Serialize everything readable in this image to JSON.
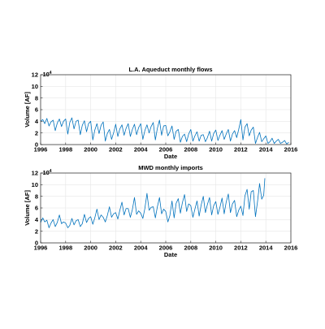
{
  "chart_data": [
    {
      "type": "line",
      "title": "L.A. Aqueduct monthly flows",
      "xlabel": "Date",
      "ylabel": "Volume [AF]",
      "y_multiplier_label": "×10⁴",
      "y_multiplier_base": "10",
      "y_multiplier_exponent": "4",
      "xlim": [
        1996,
        2016
      ],
      "ylim": [
        0,
        12
      ],
      "x_ticks": [
        1996,
        1998,
        2000,
        2002,
        2004,
        2006,
        2008,
        2010,
        2012,
        2014,
        2016
      ],
      "y_ticks": [
        0,
        2,
        4,
        6,
        8,
        10,
        12
      ],
      "grid": true,
      "color": "#0072BD",
      "series": [
        {
          "x": [
            1996.0,
            1996.17,
            1996.33,
            1996.5,
            1996.67,
            1996.83,
            1997.0,
            1997.17,
            1997.33,
            1997.5,
            1997.67,
            1997.83,
            1998.0,
            1998.17,
            1998.33,
            1998.5,
            1998.67,
            1998.83,
            1999.0,
            1999.17,
            1999.33,
            1999.5,
            1999.67,
            1999.83,
            2000.0,
            2000.17,
            2000.33,
            2000.5,
            2000.67,
            2000.83,
            2001.0,
            2001.17,
            2001.33,
            2001.5,
            2001.67,
            2001.83,
            2002.0,
            2002.17,
            2002.33,
            2002.5,
            2002.67,
            2002.83,
            2003.0,
            2003.17,
            2003.33,
            2003.5,
            2003.67,
            2003.83,
            2004.0,
            2004.17,
            2004.33,
            2004.5,
            2004.67,
            2004.83,
            2005.0,
            2005.17,
            2005.33,
            2005.5,
            2005.67,
            2005.83,
            2006.0,
            2006.17,
            2006.33,
            2006.5,
            2006.67,
            2006.83,
            2007.0,
            2007.17,
            2007.33,
            2007.5,
            2007.67,
            2007.83,
            2008.0,
            2008.17,
            2008.33,
            2008.5,
            2008.67,
            2008.83,
            2009.0,
            2009.17,
            2009.33,
            2009.5,
            2009.67,
            2009.83,
            2010.0,
            2010.17,
            2010.33,
            2010.5,
            2010.67,
            2010.83,
            2011.0,
            2011.17,
            2011.33,
            2011.5,
            2011.67,
            2011.83,
            2012.0,
            2012.17,
            2012.33,
            2012.5,
            2012.67,
            2012.83,
            2013.0,
            2013.17,
            2013.33,
            2013.5,
            2013.67,
            2013.83,
            2014.0,
            2014.17,
            2014.33,
            2014.5,
            2014.67,
            2014.83,
            2015.0,
            2015.17,
            2015.33,
            2015.5,
            2015.67,
            2015.83
          ],
          "y": [
            4.0,
            4.3,
            3.6,
            4.5,
            3.2,
            3.9,
            4.2,
            2.4,
            3.7,
            4.4,
            3.1,
            4.0,
            4.4,
            1.8,
            3.8,
            4.6,
            2.7,
            4.0,
            4.2,
            1.7,
            3.3,
            4.1,
            2.2,
            3.6,
            4.0,
            0.8,
            2.5,
            3.6,
            1.9,
            3.3,
            3.9,
            0.6,
            1.9,
            2.6,
            0.9,
            2.0,
            3.5,
            1.4,
            2.7,
            3.4,
            1.6,
            2.8,
            3.6,
            1.4,
            2.6,
            3.5,
            1.7,
            2.9,
            3.6,
            0.9,
            2.4,
            3.4,
            2.0,
            3.1,
            3.8,
            0.8,
            2.8,
            4.2,
            1.6,
            3.2,
            3.3,
            1.5,
            2.2,
            3.2,
            0.9,
            2.3,
            2.6,
            0.4,
            1.4,
            1.8,
            0.5,
            1.8,
            2.6,
            0.6,
            1.5,
            2.2,
            0.6,
            1.6,
            1.7,
            0.5,
            1.2,
            2.3,
            0.6,
            1.9,
            2.5,
            0.7,
            1.6,
            2.4,
            0.9,
            1.8,
            2.6,
            0.6,
            1.8,
            2.4,
            1.2,
            2.6,
            4.3,
            0.8,
            3.0,
            3.6,
            1.5,
            2.5,
            3.0,
            0.2,
            1.2,
            2.1,
            0.5,
            1.0,
            1.5,
            0.2,
            0.5,
            1.1,
            0.2,
            0.6,
            0.9,
            0.2,
            0.4,
            0.7,
            0.1,
            0.4
          ]
        }
      ]
    },
    {
      "type": "line",
      "title": "MWD monthly imports",
      "xlabel": "Date",
      "ylabel": "Volume [AF]",
      "y_multiplier_label": "×10⁴",
      "y_multiplier_base": "10",
      "y_multiplier_exponent": "4",
      "xlim": [
        1996,
        2016
      ],
      "ylim": [
        0,
        12
      ],
      "x_ticks": [
        1996,
        1998,
        2000,
        2002,
        2004,
        2006,
        2008,
        2010,
        2012,
        2014,
        2016
      ],
      "y_ticks": [
        0,
        2,
        4,
        6,
        8,
        10,
        12
      ],
      "grid": true,
      "color": "#0072BD",
      "series": [
        {
          "x": [
            1996.0,
            1996.17,
            1996.33,
            1996.5,
            1996.67,
            1996.83,
            1997.0,
            1997.17,
            1997.33,
            1997.5,
            1997.67,
            1997.83,
            1998.0,
            1998.17,
            1998.33,
            1998.5,
            1998.67,
            1998.83,
            1999.0,
            1999.17,
            1999.33,
            1999.5,
            1999.67,
            1999.83,
            2000.0,
            2000.17,
            2000.33,
            2000.5,
            2000.67,
            2000.83,
            2001.0,
            2001.17,
            2001.33,
            2001.5,
            2001.67,
            2001.83,
            2002.0,
            2002.17,
            2002.33,
            2002.5,
            2002.67,
            2002.83,
            2003.0,
            2003.17,
            2003.33,
            2003.5,
            2003.67,
            2003.83,
            2004.0,
            2004.17,
            2004.33,
            2004.5,
            2004.67,
            2004.83,
            2005.0,
            2005.17,
            2005.33,
            2005.5,
            2005.67,
            2005.83,
            2006.0,
            2006.17,
            2006.33,
            2006.5,
            2006.67,
            2006.83,
            2007.0,
            2007.17,
            2007.33,
            2007.5,
            2007.67,
            2007.83,
            2008.0,
            2008.17,
            2008.33,
            2008.5,
            2008.67,
            2008.83,
            2009.0,
            2009.17,
            2009.33,
            2009.5,
            2009.67,
            2009.83,
            2010.0,
            2010.17,
            2010.33,
            2010.5,
            2010.67,
            2010.83,
            2011.0,
            2011.17,
            2011.33,
            2011.5,
            2011.67,
            2011.83,
            2012.0,
            2012.17,
            2012.33,
            2012.5,
            2012.67,
            2012.83,
            2013.0,
            2013.17,
            2013.33,
            2013.5,
            2013.67,
            2013.83,
            2013.92
          ],
          "y": [
            3.5,
            4.3,
            3.6,
            3.9,
            2.6,
            3.4,
            4.0,
            2.8,
            3.5,
            4.8,
            3.3,
            3.6,
            3.4,
            2.6,
            3.0,
            4.2,
            3.1,
            3.8,
            4.0,
            2.8,
            3.3,
            4.9,
            3.5,
            4.2,
            4.5,
            3.2,
            4.3,
            5.8,
            4.0,
            4.8,
            4.4,
            3.6,
            4.7,
            6.2,
            4.4,
            5.0,
            5.2,
            4.1,
            5.6,
            7.0,
            4.8,
            5.9,
            5.9,
            4.4,
            5.7,
            7.8,
            4.9,
            5.5,
            5.1,
            4.2,
            5.9,
            8.5,
            5.6,
            6.1,
            6.2,
            4.3,
            6.2,
            7.8,
            5.0,
            5.8,
            5.4,
            3.6,
            4.7,
            7.2,
            4.3,
            6.8,
            7.6,
            5.1,
            6.9,
            8.3,
            5.4,
            6.7,
            6.4,
            4.4,
            5.8,
            7.2,
            4.6,
            6.5,
            8.0,
            5.2,
            6.6,
            7.8,
            4.8,
            6.4,
            7.1,
            4.9,
            6.1,
            7.7,
            5.0,
            7.0,
            8.4,
            5.2,
            6.7,
            7.3,
            4.5,
            5.6,
            6.3,
            4.7,
            8.1,
            9.2,
            5.8,
            8.8,
            9.0,
            4.5,
            7.0,
            10.2,
            7.5,
            8.2,
            11.1
          ]
        }
      ]
    }
  ]
}
